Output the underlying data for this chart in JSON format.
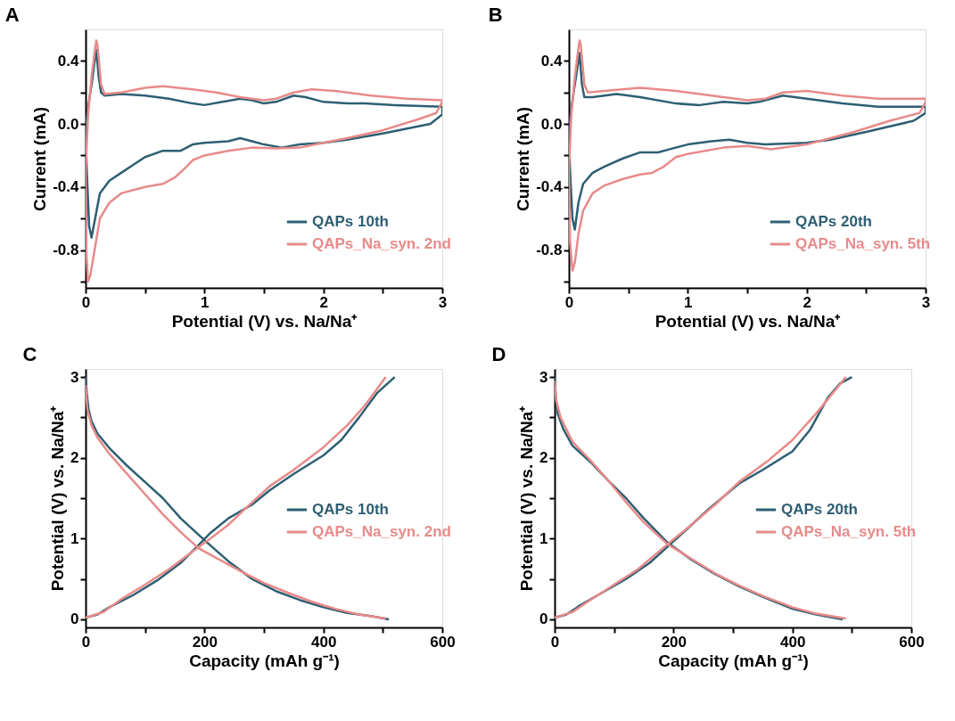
{
  "chart_data": [
    {
      "type": "line",
      "title": "A",
      "xlabel": "Potential (V) vs. Na/Na⁺",
      "ylabel": "Current (mA)",
      "xlim": [
        0,
        3
      ],
      "ylim": [
        -1.04,
        0.6
      ],
      "legend": "bottom right",
      "grid": false,
      "xticks": [
        0,
        {
          "value": 0.5,
          "label": null
        },
        1,
        {
          "value": 1.5,
          "label": null
        },
        2,
        {
          "value": 2.5,
          "label": null
        },
        3
      ],
      "yticks": [
        {
          "value": -1.0,
          "label": null
        },
        -0.8,
        {
          "value": -0.6,
          "label": null
        },
        -0.4,
        {
          "value": -0.2,
          "label": null
        },
        {
          "value": 0,
          "label": "0.0"
        },
        {
          "value": 0.2,
          "label": null
        },
        0.4
      ],
      "series": [
        {
          "name": "QAPs 10th",
          "color": "#2e5f73",
          "x": [
            3,
            2.9,
            2.5,
            2.2,
            2.0,
            1.8,
            1.65,
            1.5,
            1.4,
            1.3,
            1.2,
            1.0,
            0.9,
            0.8,
            0.65,
            0.5,
            0.4,
            0.3,
            0.2,
            0.12,
            0.08,
            0.05,
            0.03,
            0.01,
            0.0,
            null,
            0.0,
            0.02,
            0.05,
            0.08,
            0.09,
            0.11,
            0.13,
            0.16,
            0.3,
            0.5,
            0.7,
            0.9,
            1.0,
            1.15,
            1.3,
            1.4,
            1.5,
            1.6,
            1.75,
            1.85,
            2.0,
            2.2,
            2.35,
            2.6,
            3.0,
            3.0
          ],
          "values": [
            0.06,
            0.0,
            -0.06,
            -0.1,
            -0.12,
            -0.13,
            -0.15,
            -0.13,
            -0.11,
            -0.09,
            -0.11,
            -0.12,
            -0.13,
            -0.17,
            -0.17,
            -0.21,
            -0.26,
            -0.31,
            -0.36,
            -0.44,
            -0.6,
            -0.72,
            -0.65,
            -0.3,
            -0.05,
            null,
            -0.05,
            0.1,
            0.25,
            0.42,
            0.47,
            0.3,
            0.2,
            0.18,
            0.19,
            0.18,
            0.16,
            0.13,
            0.12,
            0.14,
            0.16,
            0.15,
            0.13,
            0.14,
            0.18,
            0.17,
            0.14,
            0.13,
            0.13,
            0.12,
            0.11,
            0.06
          ]
        },
        {
          "name": "QAPs_Na_syn. 2nd",
          "color": "#e88a8a",
          "x": [
            3,
            2.95,
            2.8,
            2.5,
            2.2,
            2.0,
            1.8,
            1.6,
            1.4,
            1.2,
            1.0,
            0.9,
            0.85,
            0.75,
            0.65,
            0.5,
            0.3,
            0.2,
            0.12,
            0.08,
            0.04,
            0.02,
            0.005,
            0.0,
            null,
            0.0,
            0.02,
            0.05,
            0.08,
            0.09,
            0.1,
            0.13,
            0.16,
            0.3,
            0.5,
            0.65,
            0.9,
            1.1,
            1.3,
            1.5,
            1.6,
            1.75,
            1.9,
            2.1,
            2.4,
            2.7,
            3.0,
            3.0
          ],
          "values": [
            0.14,
            0.07,
            0.03,
            -0.04,
            -0.09,
            -0.12,
            -0.15,
            -0.155,
            -0.15,
            -0.17,
            -0.2,
            -0.23,
            -0.27,
            -0.34,
            -0.38,
            -0.4,
            -0.44,
            -0.5,
            -0.6,
            -0.78,
            -0.96,
            -1.0,
            -0.8,
            -0.3,
            null,
            -0.3,
            0.05,
            0.3,
            0.48,
            0.53,
            0.5,
            0.25,
            0.19,
            0.2,
            0.23,
            0.24,
            0.22,
            0.2,
            0.17,
            0.15,
            0.16,
            0.2,
            0.22,
            0.21,
            0.18,
            0.16,
            0.15,
            0.14
          ]
        }
      ]
    },
    {
      "type": "line",
      "title": "B",
      "xlabel": "Potential (V) vs. Na/Na⁺",
      "ylabel": "Current (mA)",
      "xlim": [
        0,
        3
      ],
      "ylim": [
        -1.04,
        0.6
      ],
      "legend": "bottom right",
      "grid": false,
      "xticks": [
        0,
        {
          "value": 0.5,
          "label": null
        },
        1,
        {
          "value": 1.5,
          "label": null
        },
        2,
        {
          "value": 2.5,
          "label": null
        },
        3
      ],
      "yticks": [
        {
          "value": -1.0,
          "label": null
        },
        -0.8,
        {
          "value": -0.6,
          "label": null
        },
        -0.4,
        {
          "value": -0.2,
          "label": null
        },
        {
          "value": 0,
          "label": "0.0"
        },
        {
          "value": 0.2,
          "label": null
        },
        0.4
      ],
      "series": [
        {
          "name": "QAPs 20th",
          "color": "#2e5f73",
          "x": [
            3,
            2.9,
            2.5,
            2.2,
            2.0,
            1.8,
            1.65,
            1.5,
            1.35,
            1.2,
            1.0,
            0.85,
            0.75,
            0.6,
            0.45,
            0.3,
            0.2,
            0.12,
            0.08,
            0.05,
            0.03,
            0.01,
            0.0,
            null,
            0.0,
            0.02,
            0.05,
            0.08,
            0.09,
            0.11,
            0.13,
            0.2,
            0.4,
            0.6,
            0.9,
            1.1,
            1.3,
            1.5,
            1.6,
            1.8,
            2.0,
            2.3,
            2.6,
            3.0,
            3.0
          ],
          "values": [
            0.07,
            0.02,
            -0.05,
            -0.1,
            -0.12,
            -0.125,
            -0.13,
            -0.12,
            -0.1,
            -0.11,
            -0.13,
            -0.16,
            -0.18,
            -0.18,
            -0.22,
            -0.27,
            -0.31,
            -0.38,
            -0.5,
            -0.67,
            -0.6,
            -0.3,
            -0.05,
            null,
            -0.05,
            0.1,
            0.25,
            0.4,
            0.45,
            0.25,
            0.17,
            0.17,
            0.19,
            0.17,
            0.13,
            0.12,
            0.14,
            0.13,
            0.14,
            0.18,
            0.16,
            0.13,
            0.11,
            0.11,
            0.07
          ]
        },
        {
          "name": "QAPs_Na_syn. 5th",
          "color": "#e88a8a",
          "x": [
            3,
            2.95,
            2.7,
            2.4,
            2.2,
            2.0,
            1.7,
            1.5,
            1.3,
            1.0,
            0.9,
            0.8,
            0.7,
            0.6,
            0.45,
            0.3,
            0.2,
            0.12,
            0.08,
            0.05,
            0.03,
            0.01,
            0.0,
            null,
            0.0,
            0.02,
            0.05,
            0.08,
            0.09,
            0.1,
            0.13,
            0.16,
            0.3,
            0.6,
            0.9,
            1.2,
            1.5,
            1.65,
            1.8,
            2.0,
            2.3,
            2.6,
            3.0,
            3.0
          ],
          "values": [
            0.14,
            0.07,
            0.02,
            -0.05,
            -0.09,
            -0.13,
            -0.16,
            -0.14,
            -0.15,
            -0.19,
            -0.21,
            -0.27,
            -0.31,
            -0.32,
            -0.35,
            -0.39,
            -0.44,
            -0.55,
            -0.7,
            -0.88,
            -0.93,
            -0.75,
            -0.3,
            null,
            -0.3,
            0.05,
            0.3,
            0.48,
            0.53,
            0.5,
            0.25,
            0.2,
            0.21,
            0.23,
            0.21,
            0.18,
            0.15,
            0.16,
            0.2,
            0.21,
            0.18,
            0.16,
            0.16,
            0.14
          ]
        }
      ]
    },
    {
      "type": "line",
      "title": "C",
      "xlabel": "Capacity (mAh g⁻¹)",
      "ylabel": "Potential (V) vs. Na/Na⁺",
      "xlim": [
        0,
        600
      ],
      "ylim": [
        -0.1,
        3.1
      ],
      "legend": "right",
      "grid": false,
      "xticks": [
        0,
        {
          "value": 100,
          "label": null
        },
        200,
        {
          "value": 300,
          "label": null
        },
        400,
        {
          "value": 500,
          "label": null
        },
        600
      ],
      "yticks": [
        0,
        {
          "value": 0.5,
          "label": null
        },
        1,
        {
          "value": 1.5,
          "label": null
        },
        2,
        {
          "value": 2.5,
          "label": null
        },
        3
      ],
      "series": [
        {
          "name": "QAPs 10th",
          "color": "#2e5f73",
          "x": [
            0,
            2,
            5,
            10,
            20,
            40,
            70,
            100,
            130,
            160,
            200,
            240,
            280,
            320,
            360,
            400,
            440,
            480,
            510,
            null,
            0,
            20,
            40,
            80,
            120,
            160,
            190,
            210,
            240,
            280,
            310,
            350,
            400,
            430,
            460,
            490,
            520
          ],
          "values": [
            3.0,
            2.8,
            2.6,
            2.45,
            2.3,
            2.12,
            1.9,
            1.7,
            1.5,
            1.25,
            0.98,
            0.72,
            0.5,
            0.35,
            0.24,
            0.15,
            0.08,
            0.04,
            0.0,
            null,
            0.02,
            0.06,
            0.15,
            0.3,
            0.48,
            0.7,
            0.92,
            1.07,
            1.25,
            1.42,
            1.6,
            1.8,
            2.03,
            2.22,
            2.5,
            2.8,
            3.0
          ]
        },
        {
          "name": "QAPs_Na_syn. 2nd",
          "color": "#e88a8a",
          "x": [
            0,
            3,
            10,
            20,
            40,
            70,
            100,
            130,
            160,
            190,
            220,
            260,
            300,
            340,
            380,
            420,
            460,
            505,
            null,
            0,
            30,
            60,
            100,
            140,
            180,
            210,
            240,
            270,
            310,
            350,
            400,
            440,
            470,
            505
          ],
          "values": [
            2.9,
            2.6,
            2.4,
            2.25,
            2.05,
            1.8,
            1.55,
            1.3,
            1.08,
            0.88,
            0.76,
            0.6,
            0.45,
            0.33,
            0.22,
            0.13,
            0.06,
            0.01,
            null,
            0.02,
            0.09,
            0.25,
            0.43,
            0.62,
            0.84,
            1.0,
            1.17,
            1.38,
            1.65,
            1.85,
            2.13,
            2.4,
            2.65,
            3.0
          ]
        }
      ]
    },
    {
      "type": "line",
      "title": "D",
      "xlabel": "Capacity (mAh g⁻¹)",
      "ylabel": "Potential (V) vs. Na/Na⁺",
      "xlim": [
        0,
        600
      ],
      "ylim": [
        -0.1,
        3.1
      ],
      "legend": "right",
      "grid": false,
      "xticks": [
        0,
        {
          "value": 100,
          "label": null
        },
        200,
        {
          "value": 300,
          "label": null
        },
        400,
        {
          "value": 500,
          "label": null
        },
        600
      ],
      "yticks": [
        0,
        {
          "value": 0.5,
          "label": null
        },
        1,
        {
          "value": 1.5,
          "label": null
        },
        2,
        {
          "value": 2.5,
          "label": null
        },
        3
      ],
      "series": [
        {
          "name": "QAPs 20th",
          "color": "#2e5f73",
          "x": [
            0,
            2,
            5,
            15,
            30,
            60,
            90,
            120,
            150,
            190,
            230,
            270,
            310,
            350,
            400,
            440,
            485,
            null,
            0,
            20,
            40,
            80,
            120,
            160,
            190,
            220,
            260,
            310,
            350,
            400,
            430,
            460,
            480,
            500
          ],
          "values": [
            3.0,
            2.75,
            2.55,
            2.35,
            2.15,
            1.95,
            1.72,
            1.5,
            1.25,
            0.95,
            0.74,
            0.56,
            0.41,
            0.28,
            0.13,
            0.06,
            0.0,
            null,
            0.02,
            0.06,
            0.16,
            0.33,
            0.5,
            0.7,
            0.9,
            1.1,
            1.37,
            1.68,
            1.85,
            2.08,
            2.35,
            2.75,
            2.92,
            3.0
          ]
        },
        {
          "name": "QAPs_Na_syn. 5th",
          "color": "#e88a8a",
          "x": [
            0,
            3,
            10,
            30,
            60,
            90,
            120,
            150,
            190,
            230,
            270,
            310,
            350,
            400,
            440,
            490,
            null,
            0,
            30,
            60,
            100,
            140,
            190,
            230,
            270,
            310,
            360,
            400,
            440,
            470,
            490
          ],
          "values": [
            2.95,
            2.7,
            2.5,
            2.2,
            1.97,
            1.72,
            1.45,
            1.2,
            0.93,
            0.75,
            0.57,
            0.42,
            0.29,
            0.15,
            0.07,
            0.01,
            null,
            0.02,
            0.09,
            0.24,
            0.43,
            0.62,
            0.93,
            1.17,
            1.42,
            1.7,
            1.97,
            2.22,
            2.55,
            2.82,
            3.0
          ]
        }
      ]
    }
  ]
}
